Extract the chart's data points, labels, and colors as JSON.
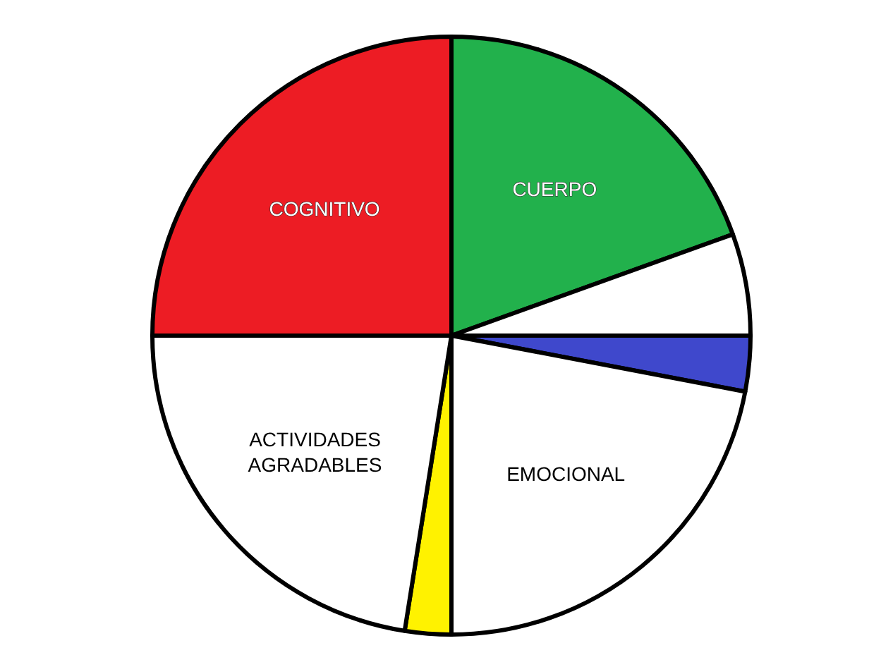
{
  "chart_data": {
    "type": "pie",
    "categories": [
      "CUERPO",
      null,
      null,
      "EMOCIONAL",
      null,
      "ACTIVIDADES AGRADABLES",
      "COGNITIVO"
    ],
    "values": [
      19.5,
      5.5,
      3,
      22,
      2.5,
      22.5,
      25
    ],
    "colors": [
      "#22b14c",
      "#ffffff",
      "#3f48cc",
      "#ffffff",
      "#fff200",
      "#ffffff",
      "#ed1c24"
    ]
  }
}
